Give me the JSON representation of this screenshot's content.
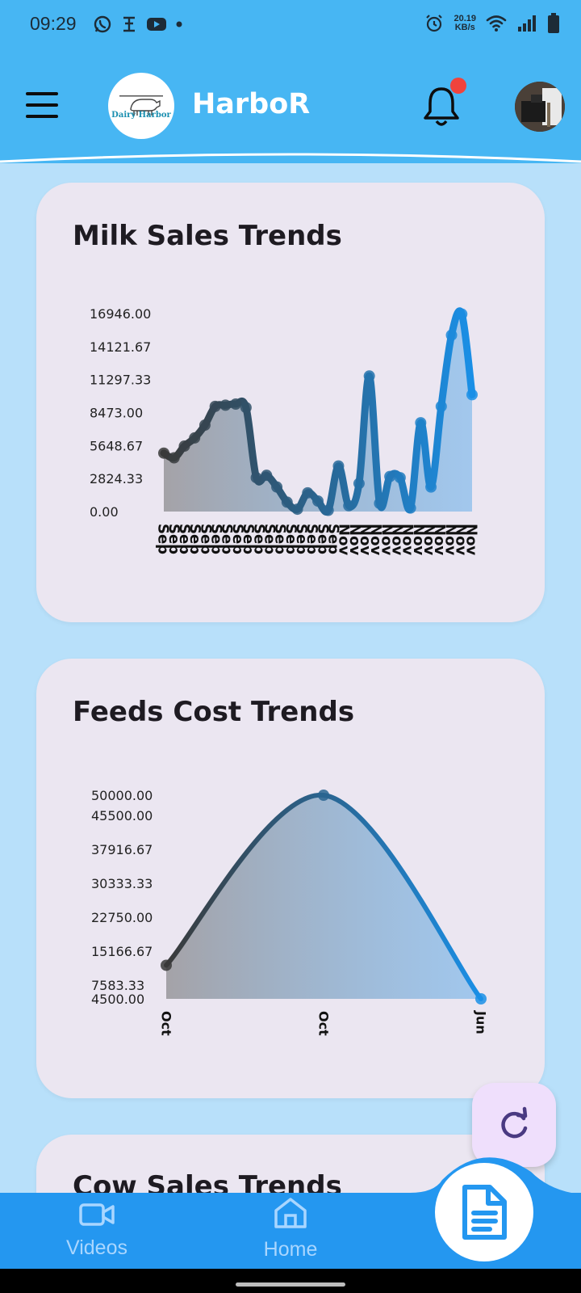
{
  "status_bar": {
    "time": "09:29",
    "net_speed_value": "20.19",
    "net_speed_unit": "KB/s",
    "left_icons": [
      "whatsapp-icon",
      "app-icon",
      "youtube-icon",
      "dot-icon"
    ],
    "right_icons": [
      "alarm-icon",
      "wifi-icon",
      "signal-icon",
      "battery-icon"
    ]
  },
  "app_bar": {
    "title": "HarboR",
    "logo_text": "Dairy Harbor",
    "color": "#47b6f3",
    "notification_dot_color": "#f0433c"
  },
  "cards": [
    {
      "title": "Milk Sales Trends",
      "chart_data": {
        "type": "area",
        "y_ticks": [
          "16946.00",
          "14121.67",
          "11297.33",
          "8473.00",
          "5648.67",
          "2824.33",
          "0.00"
        ],
        "ylim": [
          0,
          16946
        ],
        "x_label_groups": [
          {
            "label": "Sep",
            "count": 17
          },
          {
            "label": "Nov",
            "count": 13
          }
        ],
        "values": [
          5000,
          4600,
          5600,
          6300,
          7400,
          9000,
          9100,
          9200,
          8900,
          2900,
          3100,
          2100,
          800,
          200,
          1600,
          900,
          100,
          3900,
          500,
          2400,
          11600,
          700,
          3000,
          2900,
          300,
          7600,
          2100,
          9000,
          15100,
          16900,
          10000
        ],
        "color_start": "#3a3a3a",
        "color_end": "#1a8fe6"
      }
    },
    {
      "title": "Feeds Cost Trends",
      "chart_data": {
        "type": "area",
        "y_ticks": [
          "50000.00",
          "45500.00",
          "37916.67",
          "30333.33",
          "22750.00",
          "15166.67",
          "7583.33",
          "4500.00"
        ],
        "ylim": [
          4500,
          50000
        ],
        "categories": [
          "Oct",
          "Oct",
          "Jun"
        ],
        "values": [
          12000,
          50000,
          4500
        ],
        "color_start": "#3a3a3a",
        "color_end": "#1a8fe6"
      }
    },
    {
      "title": "Cow Sales Trends"
    }
  ],
  "bottom_nav": {
    "items": [
      {
        "label": "Videos",
        "icon": "video-camera-icon"
      },
      {
        "label": "Home",
        "icon": "home-icon"
      }
    ],
    "center_button_icon": "document-icon",
    "color": "#2497f0"
  },
  "fab": {
    "icon": "refresh-icon"
  }
}
